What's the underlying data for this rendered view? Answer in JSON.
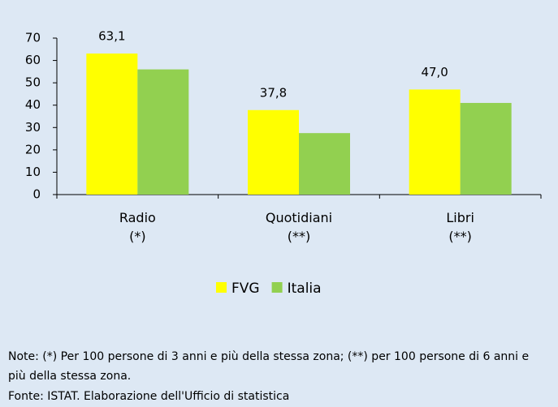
{
  "chart_data": {
    "type": "bar",
    "categories": [
      "Radio\n(*)",
      "Quotidiani\n(**)",
      "Libri\n(**)"
    ],
    "series": [
      {
        "name": "FVG",
        "color": "#ffff00",
        "values": [
          63.1,
          37.8,
          47.0
        ],
        "value_labels": [
          "63,1",
          "37,8",
          "47,0"
        ]
      },
      {
        "name": "Italia",
        "color": "#92d050",
        "values": [
          56,
          27.5,
          41
        ]
      }
    ],
    "ylim": [
      0,
      70
    ],
    "yticks": [
      0,
      10,
      20,
      30,
      40,
      50,
      60,
      70
    ],
    "legend": "bottom",
    "note": "Note: (*) Per 100 persone di 3 anni e più della stessa zona; (**) per 100 persone di 6 anni e più della stessa zona.",
    "source": "Fonte: ISTAT. Elaborazione dell'Ufficio di statistica"
  }
}
